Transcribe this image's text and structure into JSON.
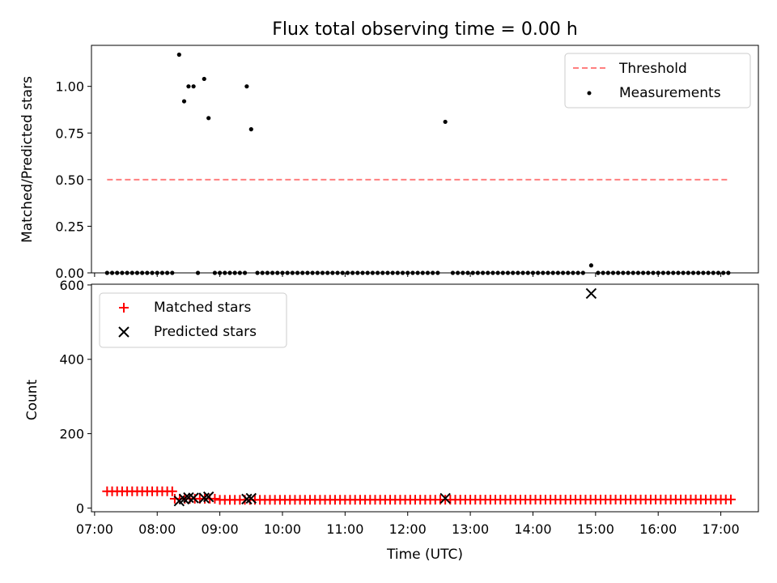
{
  "chart_data": [
    {
      "type": "scatter",
      "title": "Flux total observing time = 0.00 h",
      "ylabel": "Matched/Predicted stars",
      "ylim": [
        0,
        1.22
      ],
      "yticks": [
        "0.00",
        "0.25",
        "0.50",
        "0.75",
        "1.00"
      ],
      "legend_position": "top-right",
      "threshold": {
        "name": "Threshold",
        "value": 0.5,
        "x_start": 7.2,
        "x_end": 17.15,
        "color": "#ff7f7f"
      },
      "series": [
        {
          "name": "Measurements",
          "color": "#000000",
          "points": [
            [
              7.2,
              0
            ],
            [
              7.28,
              0
            ],
            [
              7.36,
              0
            ],
            [
              7.44,
              0
            ],
            [
              7.52,
              0
            ],
            [
              7.6,
              0
            ],
            [
              7.68,
              0
            ],
            [
              7.76,
              0
            ],
            [
              7.84,
              0
            ],
            [
              7.92,
              0
            ],
            [
              8.0,
              0
            ],
            [
              8.08,
              0
            ],
            [
              8.16,
              0
            ],
            [
              8.24,
              0
            ],
            [
              8.35,
              1.17
            ],
            [
              8.43,
              0.92
            ],
            [
              8.5,
              1.0
            ],
            [
              8.58,
              1.0
            ],
            [
              8.65,
              0
            ],
            [
              8.75,
              1.04
            ],
            [
              8.82,
              0.83
            ],
            [
              8.92,
              0
            ],
            [
              9.0,
              0
            ],
            [
              9.08,
              0
            ],
            [
              9.16,
              0
            ],
            [
              9.24,
              0
            ],
            [
              9.32,
              0
            ],
            [
              9.4,
              0
            ],
            [
              9.43,
              1.0
            ],
            [
              9.5,
              0.77
            ],
            [
              9.6,
              0
            ],
            [
              9.68,
              0
            ],
            [
              9.76,
              0
            ],
            [
              9.84,
              0
            ],
            [
              9.92,
              0
            ],
            [
              10.0,
              0
            ],
            [
              10.08,
              0
            ],
            [
              10.16,
              0
            ],
            [
              10.24,
              0
            ],
            [
              10.32,
              0
            ],
            [
              10.4,
              0
            ],
            [
              10.48,
              0
            ],
            [
              10.56,
              0
            ],
            [
              10.64,
              0
            ],
            [
              10.72,
              0
            ],
            [
              10.8,
              0
            ],
            [
              10.88,
              0
            ],
            [
              10.96,
              0
            ],
            [
              11.04,
              0
            ],
            [
              11.12,
              0
            ],
            [
              11.2,
              0
            ],
            [
              11.28,
              0
            ],
            [
              11.36,
              0
            ],
            [
              11.44,
              0
            ],
            [
              11.52,
              0
            ],
            [
              11.6,
              0
            ],
            [
              11.68,
              0
            ],
            [
              11.76,
              0
            ],
            [
              11.84,
              0
            ],
            [
              11.92,
              0
            ],
            [
              12.0,
              0
            ],
            [
              12.08,
              0
            ],
            [
              12.16,
              0
            ],
            [
              12.24,
              0
            ],
            [
              12.32,
              0
            ],
            [
              12.4,
              0
            ],
            [
              12.48,
              0
            ],
            [
              12.6,
              0.81
            ],
            [
              12.72,
              0
            ],
            [
              12.8,
              0
            ],
            [
              12.88,
              0
            ],
            [
              12.96,
              0
            ],
            [
              13.04,
              0
            ],
            [
              13.12,
              0
            ],
            [
              13.2,
              0
            ],
            [
              13.28,
              0
            ],
            [
              13.36,
              0
            ],
            [
              13.44,
              0
            ],
            [
              13.52,
              0
            ],
            [
              13.6,
              0
            ],
            [
              13.68,
              0
            ],
            [
              13.76,
              0
            ],
            [
              13.84,
              0
            ],
            [
              13.92,
              0
            ],
            [
              14.0,
              0
            ],
            [
              14.08,
              0
            ],
            [
              14.16,
              0
            ],
            [
              14.24,
              0
            ],
            [
              14.32,
              0
            ],
            [
              14.4,
              0
            ],
            [
              14.48,
              0
            ],
            [
              14.56,
              0
            ],
            [
              14.64,
              0
            ],
            [
              14.72,
              0
            ],
            [
              14.8,
              0
            ],
            [
              14.93,
              0.04
            ],
            [
              15.04,
              0
            ],
            [
              15.12,
              0
            ],
            [
              15.2,
              0
            ],
            [
              15.28,
              0
            ],
            [
              15.36,
              0
            ],
            [
              15.44,
              0
            ],
            [
              15.52,
              0
            ],
            [
              15.6,
              0
            ],
            [
              15.68,
              0
            ],
            [
              15.76,
              0
            ],
            [
              15.84,
              0
            ],
            [
              15.92,
              0
            ],
            [
              16.0,
              0
            ],
            [
              16.08,
              0
            ],
            [
              16.16,
              0
            ],
            [
              16.24,
              0
            ],
            [
              16.32,
              0
            ],
            [
              16.4,
              0
            ],
            [
              16.48,
              0
            ],
            [
              16.56,
              0
            ],
            [
              16.64,
              0
            ],
            [
              16.72,
              0
            ],
            [
              16.8,
              0
            ],
            [
              16.88,
              0
            ],
            [
              16.96,
              0
            ],
            [
              17.04,
              0
            ],
            [
              17.12,
              0
            ]
          ]
        }
      ]
    },
    {
      "type": "scatter",
      "xlabel": "Time (UTC)",
      "ylabel": "Count",
      "xlim": [
        6.95,
        17.6
      ],
      "ylim": [
        -10,
        602
      ],
      "xticks": [
        {
          "value": 7,
          "label": "07:00"
        },
        {
          "value": 8,
          "label": "08:00"
        },
        {
          "value": 9,
          "label": "09:00"
        },
        {
          "value": 10,
          "label": "10:00"
        },
        {
          "value": 11,
          "label": "11:00"
        },
        {
          "value": 12,
          "label": "12:00"
        },
        {
          "value": 13,
          "label": "13:00"
        },
        {
          "value": 14,
          "label": "14:00"
        },
        {
          "value": 15,
          "label": "15:00"
        },
        {
          "value": 16,
          "label": "16:00"
        },
        {
          "value": 17,
          "label": "17:00"
        }
      ],
      "yticks": [
        {
          "value": 0,
          "label": "0"
        },
        {
          "value": 200,
          "label": "200"
        },
        {
          "value": 400,
          "label": "400"
        },
        {
          "value": 600,
          "label": "600"
        }
      ],
      "legend_position": "top-left",
      "series": [
        {
          "name": "Matched stars",
          "color": "#ff0000",
          "marker": "+",
          "segments": [
            {
              "x_start": 7.2,
              "x_end": 8.24,
              "step": 0.08,
              "y": 45
            },
            {
              "x_start": 8.28,
              "x_end": 8.92,
              "step": 0.08,
              "y": 25
            },
            {
              "x_start": 9.0,
              "x_end": 17.12,
              "step": 0.08,
              "y_start": 22,
              "y_end": 23
            }
          ]
        },
        {
          "name": "Predicted stars",
          "color": "#000000",
          "marker": "x",
          "points": [
            [
              8.35,
              19
            ],
            [
              8.43,
              24
            ],
            [
              8.5,
              28
            ],
            [
              8.58,
              27
            ],
            [
              8.75,
              27
            ],
            [
              8.82,
              30
            ],
            [
              9.43,
              24
            ],
            [
              9.5,
              26
            ],
            [
              12.6,
              26
            ],
            [
              14.93,
              577
            ]
          ]
        }
      ]
    }
  ]
}
